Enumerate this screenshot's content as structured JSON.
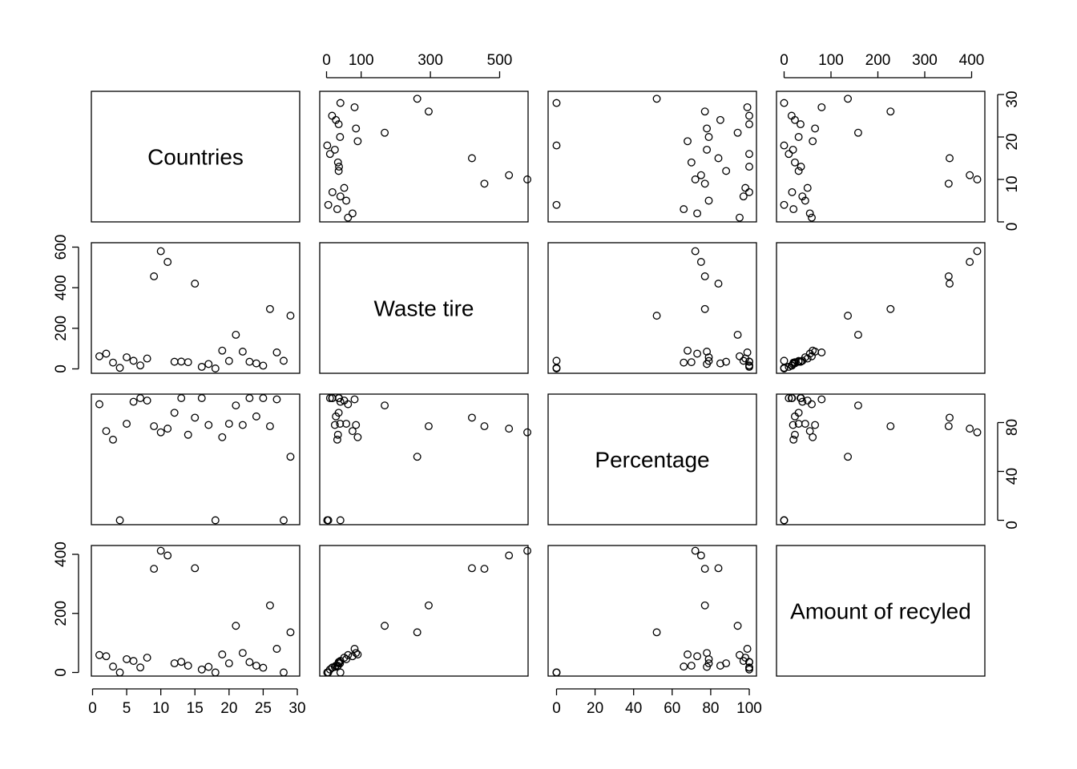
{
  "chart_data": {
    "type": "scatter",
    "subtype": "pairs-matrix",
    "variables": [
      "Countries",
      "Waste tire",
      "Percentage",
      "Amount of recyled"
    ],
    "axes": {
      "Countries": {
        "range": [
          0,
          30
        ],
        "ticks": [
          0,
          5,
          10,
          15,
          20,
          25,
          30
        ],
        "tick_side": "bottom"
      },
      "Waste tire": {
        "range": [
          0,
          600
        ],
        "ticks": [
          0,
          100,
          300,
          500
        ],
        "tick_labels": [
          "0",
          "100",
          "300",
          "500"
        ],
        "tick_side": "top",
        "left_ticks": [
          0,
          200,
          400,
          600
        ]
      },
      "Percentage": {
        "range": [
          0,
          100
        ],
        "ticks": [
          0,
          20,
          40,
          60,
          80,
          100
        ],
        "tick_side": "bottom",
        "right_ticks": [
          0,
          40,
          80
        ]
      },
      "Amount of recyled": {
        "range": [
          0,
          420
        ],
        "ticks": [
          0,
          100,
          200,
          300,
          400
        ],
        "tick_side": "top",
        "left_ticks": [
          0,
          200,
          400
        ]
      },
      "Countries_right_ticks": [
        0,
        10,
        20,
        30
      ]
    },
    "points": [
      {
        "country": 1,
        "waste_tire": 62,
        "percentage": 95,
        "recycled": 59
      },
      {
        "country": 2,
        "waste_tire": 75,
        "percentage": 73,
        "recycled": 55
      },
      {
        "country": 3,
        "waste_tire": 31,
        "percentage": 66,
        "recycled": 20
      },
      {
        "country": 4,
        "waste_tire": 5,
        "percentage": 0,
        "recycled": 0
      },
      {
        "country": 5,
        "waste_tire": 57,
        "percentage": 79,
        "recycled": 45
      },
      {
        "country": 6,
        "waste_tire": 40,
        "percentage": 97,
        "recycled": 39
      },
      {
        "country": 7,
        "waste_tire": 17,
        "percentage": 100,
        "recycled": 17
      },
      {
        "country": 8,
        "waste_tire": 51,
        "percentage": 98,
        "recycled": 50
      },
      {
        "country": 9,
        "waste_tire": 456,
        "percentage": 77,
        "recycled": 351
      },
      {
        "country": 10,
        "waste_tire": 580,
        "percentage": 72,
        "recycled": 412
      },
      {
        "country": 11,
        "waste_tire": 527,
        "percentage": 75,
        "recycled": 396
      },
      {
        "country": 12,
        "waste_tire": 35,
        "percentage": 88,
        "recycled": 31
      },
      {
        "country": 13,
        "waste_tire": 36,
        "percentage": 100,
        "recycled": 36
      },
      {
        "country": 14,
        "waste_tire": 33,
        "percentage": 70,
        "recycled": 23
      },
      {
        "country": 15,
        "waste_tire": 420,
        "percentage": 84,
        "recycled": 353
      },
      {
        "country": 16,
        "waste_tire": 10,
        "percentage": 100,
        "recycled": 10
      },
      {
        "country": 17,
        "waste_tire": 24,
        "percentage": 78,
        "recycled": 19
      },
      {
        "country": 18,
        "waste_tire": 2,
        "percentage": 0,
        "recycled": 0
      },
      {
        "country": 19,
        "waste_tire": 90,
        "percentage": 68,
        "recycled": 61
      },
      {
        "country": 20,
        "waste_tire": 39,
        "percentage": 79,
        "recycled": 31
      },
      {
        "country": 21,
        "waste_tire": 168,
        "percentage": 94,
        "recycled": 158
      },
      {
        "country": 22,
        "waste_tire": 85,
        "percentage": 78,
        "recycled": 66
      },
      {
        "country": 23,
        "waste_tire": 35,
        "percentage": 100,
        "recycled": 35
      },
      {
        "country": 24,
        "waste_tire": 27,
        "percentage": 85,
        "recycled": 23
      },
      {
        "country": 25,
        "waste_tire": 16,
        "percentage": 100,
        "recycled": 16
      },
      {
        "country": 26,
        "waste_tire": 295,
        "percentage": 77,
        "recycled": 227
      },
      {
        "country": 27,
        "waste_tire": 81,
        "percentage": 99,
        "recycled": 80
      },
      {
        "country": 28,
        "waste_tire": 40,
        "percentage": 0,
        "recycled": 0
      },
      {
        "country": 29,
        "waste_tire": 262,
        "percentage": 52,
        "recycled": 136
      }
    ],
    "grid": false,
    "legend": "none"
  }
}
